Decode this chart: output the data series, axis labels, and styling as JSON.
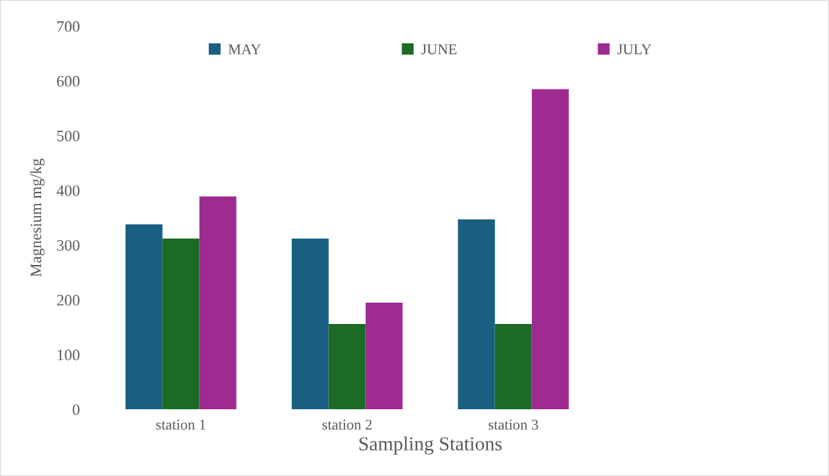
{
  "chart_data": {
    "type": "bar",
    "ylabel": "Magnesium mg/kg",
    "xlabel": "Sampling Stations",
    "categories": [
      "station 1",
      "station 2",
      "station 3",
      null
    ],
    "series": [
      {
        "name": "MAY",
        "color": "#185f82",
        "values": [
          338,
          312,
          347,
          null
        ]
      },
      {
        "name": "JUNE",
        "color": "#1c6a24",
        "values": [
          312,
          156,
          156,
          null
        ]
      },
      {
        "name": "JULY",
        "color": "#9e2b90",
        "values": [
          389,
          195,
          585,
          null
        ]
      }
    ],
    "ylim": [
      0,
      700
    ],
    "yticks": [
      0,
      100,
      200,
      300,
      400,
      500,
      600,
      700
    ],
    "grid": false,
    "legend": "top"
  }
}
